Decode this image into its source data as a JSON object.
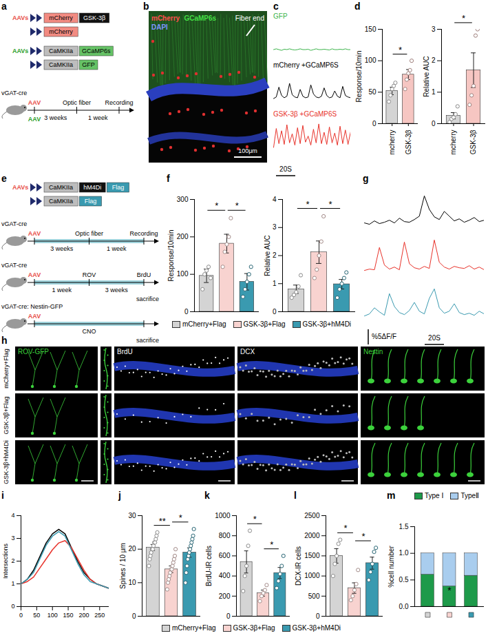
{
  "chart_data": [
    {
      "type": "line",
      "panel": "c",
      "tick_labels": false,
      "ylim": [
        -0.5,
        3.5
      ],
      "series": [
        {
          "name": "GFP",
          "color": "#3cb44b",
          "values": [
            0,
            0.1,
            0,
            -0.1,
            0.05,
            0,
            0.1,
            0,
            -0.05,
            0,
            0.1,
            0,
            0,
            0.05,
            -0.1,
            0,
            0.1,
            0,
            0,
            0.05,
            0,
            -0.05,
            0.1,
            0,
            0,
            0.05,
            0,
            0.1,
            0,
            0
          ]
        },
        {
          "name": "mCherry +GCaMP6S",
          "color": "#000000",
          "values": [
            0,
            0.2,
            1.5,
            0.4,
            0.1,
            0.3,
            2,
            0.5,
            0.2,
            0.1,
            1.2,
            0.3,
            0.1,
            0.2,
            1.8,
            0.6,
            0.2,
            0.1,
            0.3,
            1.4,
            0.4,
            0.1,
            0.2,
            1.0,
            0.3,
            0.1,
            1.6,
            0.4,
            0.2,
            0.1
          ]
        },
        {
          "name": "GSK-3β +GCaMP6S",
          "color": "#e8322a",
          "values": [
            0,
            2.5,
            0.5,
            2.2,
            0.4,
            3,
            0.6,
            1.8,
            0.3,
            2.6,
            0.5,
            2.9,
            0.7,
            1.5,
            0.3,
            2.4,
            0.6,
            3.1,
            0.5,
            2.0,
            0.4,
            2.7,
            0.6,
            1.9,
            0.3,
            2.8,
            0.5,
            2.3,
            0.4,
            2.1
          ]
        }
      ],
      "scalebar": {
        "x_label": "20S"
      }
    },
    {
      "type": "bar",
      "panel": "d",
      "y_label": "Response/10min",
      "categories": [
        "mcherry",
        "GSK-3β"
      ],
      "values": [
        52,
        78
      ],
      "errors": [
        6,
        8
      ],
      "points": [
        [
          35,
          45,
          55,
          60,
          65
        ],
        [
          55,
          70,
          80,
          85,
          100
        ]
      ],
      "colors": [
        "#d4d4d4",
        "#f6c6c2"
      ],
      "ylim": [
        0,
        150
      ],
      "yticks": [
        0,
        50,
        100,
        150
      ],
      "significance": [
        {
          "from": 0,
          "to": 1,
          "text": "*"
        }
      ]
    },
    {
      "type": "bar",
      "y_label": "Relative AUC",
      "categories": [
        "mcherry",
        "GSK-3β"
      ],
      "values": [
        0.25,
        1.7
      ],
      "errors": [
        0.1,
        0.55
      ],
      "points": [
        [
          0.05,
          0.15,
          0.2,
          0.3,
          0.55
        ],
        [
          0.6,
          0.9,
          1.2,
          2.8,
          3.0
        ]
      ],
      "colors": [
        "#d4d4d4",
        "#f6c6c2"
      ],
      "ylim": [
        0,
        3
      ],
      "yticks": [
        0,
        1,
        2,
        3
      ],
      "significance": [
        {
          "from": 0,
          "to": 1,
          "text": "*"
        }
      ]
    },
    {
      "type": "bar",
      "panel": "f",
      "y_label": "Response/10min",
      "categories": [
        "mCherry+Flag",
        "GSK-3β+Flag",
        "GSK-3β+hM4Di"
      ],
      "values": [
        96,
        182,
        80
      ],
      "errors": [
        18,
        25,
        22
      ],
      "points": [
        [
          60,
          100,
          110,
          120,
          90
        ],
        [
          120,
          160,
          180,
          200,
          250
        ],
        [
          40,
          60,
          80,
          100,
          120
        ]
      ],
      "colors": [
        "#d4d4d4",
        "#f8d3d0",
        "#3a9ab0"
      ],
      "ylim": [
        0,
        300
      ],
      "yticks": [
        0,
        100,
        200,
        300
      ],
      "tick_labels": "y",
      "legend": "bottom",
      "significance": [
        {
          "from": 0,
          "to": 1,
          "text": "*"
        },
        {
          "from": 1,
          "to": 2,
          "text": "*"
        }
      ]
    },
    {
      "type": "bar",
      "y_label": "Relative AUC",
      "categories": [
        "mCherry+Flag",
        "GSK-3β+Flag",
        "GSK-3β+hM4Di"
      ],
      "values": [
        0.8,
        2.12,
        0.98
      ],
      "errors": [
        0.15,
        0.4,
        0.17
      ],
      "points": [
        [
          0.5,
          0.6,
          0.7,
          0.9,
          1.3
        ],
        [
          1.2,
          1.5,
          2.0,
          2.5,
          3.4
        ],
        [
          0.5,
          0.8,
          1.0,
          1.2,
          1.4
        ]
      ],
      "colors": [
        "#d4d4d4",
        "#f8d3d0",
        "#3a9ab0"
      ],
      "ylim": [
        0,
        4
      ],
      "yticks": [
        0,
        1,
        2,
        3,
        4
      ],
      "tick_labels": "y",
      "significance": [
        {
          "from": 0,
          "to": 1,
          "text": "*"
        },
        {
          "from": 1,
          "to": 2,
          "text": "*"
        }
      ]
    },
    {
      "type": "line",
      "panel": "g",
      "tick_labels": false,
      "ylim": [
        0,
        5.5
      ],
      "series": [
        {
          "color": "#000000",
          "values": [
            0.5,
            0.3,
            0.8,
            0.4,
            0.6,
            0.9,
            0.5,
            1.2,
            0.7,
            0.6,
            1.0,
            1.5,
            4.5,
            2.5,
            1.4,
            1.0,
            2.2,
            1.5,
            0.8,
            1.1,
            0.6,
            0.9,
            1.3,
            0.7,
            0.9
          ]
        },
        {
          "color": "#e8322a",
          "values": [
            0.4,
            0.6,
            0.5,
            3.8,
            1.2,
            0.6,
            0.9,
            0.5,
            4.6,
            1.4,
            0.8,
            0.6,
            1.0,
            0.7,
            4.9,
            1.6,
            0.9,
            0.6,
            1.0,
            0.8,
            0.7,
            1.1,
            0.6,
            0.9,
            0.5
          ]
        },
        {
          "color": "#3a9ab0",
          "values": [
            0.6,
            0.9,
            1.8,
            1.2,
            0.7,
            3.9,
            2.0,
            1.1,
            0.8,
            1.4,
            2.6,
            1.3,
            0.9,
            3.2,
            4.6,
            1.8,
            1.0,
            1.3,
            2.4,
            1.1,
            0.8,
            1.0,
            0.7,
            1.3,
            0.9
          ]
        }
      ],
      "scalebar": {
        "x_label": "20S",
        "y_label": "%5ΔF/F"
      }
    },
    {
      "type": "line",
      "panel": "i",
      "y_label": "Intersections",
      "x": [
        0,
        20,
        40,
        60,
        80,
        100,
        120,
        140,
        160,
        180,
        200,
        220,
        240,
        260,
        280
      ],
      "series": [
        {
          "color": "#000000",
          "values": [
            1,
            1.2,
            1.6,
            2.2,
            2.8,
            3.2,
            3.4,
            3.2,
            2.6,
            2.0,
            1.5,
            1.2,
            1.0,
            0.9,
            0.8
          ]
        },
        {
          "color": "#e8322a",
          "values": [
            1,
            1.1,
            1.3,
            1.7,
            2.1,
            2.5,
            2.8,
            2.9,
            2.6,
            2.1,
            1.6,
            1.2,
            1.0,
            0.9,
            0.8
          ]
        },
        {
          "color": "#3a9ab0",
          "values": [
            1,
            1.2,
            1.5,
            2.1,
            2.7,
            3.1,
            3.3,
            3.1,
            2.5,
            1.9,
            1.4,
            1.1,
            1.0,
            0.9,
            0.8
          ]
        }
      ],
      "xlim": [
        0,
        280
      ],
      "xticks": [
        0,
        50,
        100,
        150,
        200,
        250
      ],
      "ylim": [
        0,
        4
      ],
      "yticks": [
        0,
        1,
        2,
        3,
        4
      ]
    },
    {
      "type": "bar",
      "panel": "j",
      "y_label": "Spines / 10 μm",
      "categories": [
        "mCherry+Flag",
        "GSK-3β+Flag",
        "GSK-3β+hM4Di"
      ],
      "values": [
        20.5,
        14,
        19
      ],
      "errors": [
        0.9,
        1.0,
        1.4
      ],
      "points": [
        [
          15,
          17,
          18,
          19,
          20,
          20,
          21,
          22,
          22,
          23,
          24,
          25
        ],
        [
          8,
          10,
          11,
          12,
          13,
          14,
          14,
          15,
          16,
          17,
          18,
          20
        ],
        [
          10,
          13,
          15,
          17,
          18,
          19,
          20,
          21,
          22,
          23,
          24,
          26
        ]
      ],
      "colors": [
        "#d4d4d4",
        "#f8d3d0",
        "#3a9ab0"
      ],
      "ylim": [
        0,
        30
      ],
      "yticks": [
        0,
        10,
        20,
        30
      ],
      "tick_labels": "y",
      "legend": "bottom",
      "significance": [
        {
          "from": 0,
          "to": 1,
          "text": "**"
        },
        {
          "from": 1,
          "to": 2,
          "text": "*"
        }
      ]
    },
    {
      "type": "bar",
      "panel": "k",
      "y_label": "BrdU-IR cells",
      "categories": [
        "mCherry+Flag",
        "GSK-3β+Flag",
        "GSK-3β+hM4Di"
      ],
      "values": [
        540,
        230,
        430
      ],
      "errors": [
        110,
        30,
        55
      ],
      "points": [
        [
          250,
          400,
          500,
          700,
          850
        ],
        [
          150,
          200,
          230,
          260,
          310
        ],
        [
          280,
          350,
          420,
          500,
          600
        ]
      ],
      "colors": [
        "#d4d4d4",
        "#f8d3d0",
        "#3a9ab0"
      ],
      "ylim": [
        0,
        1000
      ],
      "yticks": [
        0,
        200,
        400,
        600,
        800,
        1000
      ],
      "tick_labels": "y",
      "significance": [
        {
          "from": 0,
          "to": 1,
          "text": "*"
        },
        {
          "from": 1,
          "to": 2,
          "text": "*"
        }
      ]
    },
    {
      "type": "bar",
      "panel": "l",
      "y_label": "DCX-IR cells",
      "categories": [
        "mCherry+Flag",
        "GSK-3β+Flag",
        "GSK-3β+hM4Di"
      ],
      "values": [
        1500,
        700,
        1320
      ],
      "errors": [
        180,
        130,
        150
      ],
      "points": [
        [
          1000,
          1300,
          1500,
          1800,
          1900
        ],
        [
          400,
          500,
          650,
          800,
          1150
        ],
        [
          900,
          1100,
          1300,
          1600,
          1700
        ]
      ],
      "colors": [
        "#d4d4d4",
        "#f8d3d0",
        "#3a9ab0"
      ],
      "ylim": [
        0,
        2500
      ],
      "yticks": [
        0,
        500,
        1000,
        1500,
        2000,
        2500
      ],
      "tick_labels": "y",
      "significance": [
        {
          "from": 0,
          "to": 1,
          "text": "*"
        },
        {
          "from": 1,
          "to": 2,
          "text": "*"
        }
      ]
    },
    {
      "type": "bar",
      "panel": "m",
      "stacked": true,
      "y_label": "%cell number",
      "categories": [
        null,
        null,
        null
      ],
      "colors": [
        "#d4d4d4",
        "#f8d3d0",
        "#3a9ab0"
      ],
      "series": [
        {
          "name": "Type Ⅰ",
          "color": "#1e9a4a",
          "values": [
            0.6,
            0.38,
            0.58
          ]
        },
        {
          "name": "TypeⅡ",
          "color": "#a9cdee",
          "values": [
            0.4,
            0.62,
            0.42
          ]
        }
      ],
      "ylim": [
        0,
        1.5
      ],
      "yticks": [
        {
          "value": 0,
          "label": "0.0"
        },
        {
          "value": 0.5,
          "label": "0.5"
        },
        {
          "value": 1,
          "label": "1.0"
        },
        {
          "value": 1.5,
          "label": "1.5"
        }
      ],
      "tick_labels": "y",
      "legend": "top",
      "annotations": [
        {
          "index": 1,
          "y": 0.3,
          "text": "*"
        }
      ]
    }
  ],
  "diagrams": {
    "a": {
      "panel": "a",
      "groups": [
        {
          "label": "AAVs",
          "color": "#e8504a",
          "constructs": [
            [
              {
                "text": "mCherry",
                "color": "#f28b82"
              },
              {
                "text": "GSK-3β",
                "color": "#111111"
              }
            ],
            [
              {
                "text": "mCherry",
                "color": "#f28b82"
              }
            ]
          ]
        },
        {
          "label": "AAVs",
          "color": "#2ca02c",
          "constructs": [
            [
              {
                "text": "CaMKIIa",
                "color": "#bdbdbd"
              },
              {
                "text": "GCaMP6s",
                "color": "#66c266"
              }
            ],
            [
              {
                "text": "CaMKIIa",
                "color": "#bdbdbd"
              },
              {
                "text": "GFP",
                "color": "#66c266"
              }
            ]
          ]
        }
      ],
      "timeline": {
        "mouse": "vGAT-cre",
        "injections": [
          {
            "text": "AAV",
            "color": "#e8504a"
          },
          {
            "text": "AAV",
            "color": "#2ca02c"
          }
        ],
        "marks": [
          "Optic fiber",
          "Recording"
        ],
        "intervals": [
          "3 weeks",
          "1 week"
        ]
      }
    },
    "b": {
      "panel": "b",
      "channels": [
        {
          "text": "mCherry",
          "color": "#ff4d4d"
        },
        {
          "text": "GCaMP6s",
          "color": "#44dd44"
        },
        {
          "text": "DAPI",
          "color": "#7f94ff"
        }
      ],
      "annotation": "Fiber end",
      "scale_bar": "100μm"
    },
    "e": {
      "panel": "e",
      "groups": [
        {
          "label": "AAVs",
          "color": "#e8504a",
          "constructs": [
            [
              {
                "text": "CaMKIIa",
                "color": "#bdbdbd"
              },
              {
                "text": "hM4Di",
                "color": "#111111"
              },
              {
                "text": "Flag",
                "color": "#3a9ab0"
              }
            ],
            [
              {
                "text": "CaMKIIa",
                "color": "#bdbdbd"
              },
              {
                "text": "Flag",
                "color": "#3a9ab0"
              }
            ]
          ]
        }
      ],
      "timelines": [
        {
          "mouse": "vGAT-cre",
          "injections": [
            {
              "text": "AAV",
              "color": "#e8504a"
            }
          ],
          "marks": [
            "Optic fiber",
            "Recording"
          ],
          "intervals": [
            "3 weeks",
            "1 week"
          ]
        },
        {
          "mouse": "vGAT-cre",
          "injections": [
            {
              "text": "AAV",
              "color": "#e8504a"
            }
          ],
          "marks": [
            "ROV",
            "BrdU"
          ],
          "intervals": [
            "1 week",
            "3 weeks"
          ],
          "end": "sacrifice"
        },
        {
          "mouse": "vGAT-cre: Nestin-GFP",
          "injections": [
            {
              "text": "AAV",
              "color": "#e8504a"
            }
          ],
          "marks": [],
          "intervals": [
            "CNO"
          ],
          "end": "sacrifice"
        }
      ]
    },
    "h": {
      "panel": "h",
      "columns": [
        {
          "text": "ROV-GFP",
          "color": "#3cd23c"
        },
        null,
        {
          "text": "BrdU",
          "color": "#ffffff"
        },
        {
          "text": "DCX",
          "color": "#ffffff"
        },
        {
          "text": "Nestin",
          "color": "#3cd23c"
        }
      ],
      "rows": [
        "mCherry+Flag",
        "GSK-3β+Flag",
        "GSK-3β+hM4Di"
      ]
    }
  }
}
